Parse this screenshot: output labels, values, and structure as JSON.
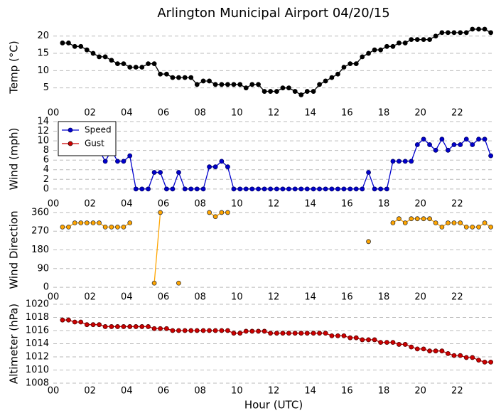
{
  "title": "Arlington Municipal Airport 04/20/15",
  "chart_data": [
    {
      "type": "line",
      "ylabel": "Temp (°C)",
      "ylim": [
        0,
        22
      ],
      "yticks": [
        5,
        10,
        15,
        20
      ],
      "xlim": [
        0,
        24
      ],
      "xticks": [
        {
          "value": 0,
          "label": "00"
        },
        {
          "value": 2,
          "label": "02"
        },
        {
          "value": 4,
          "label": "04"
        },
        {
          "value": 6,
          "label": "06"
        },
        {
          "value": 8,
          "label": "08"
        },
        {
          "value": 10,
          "label": "10"
        },
        {
          "value": 12,
          "label": "12"
        },
        {
          "value": 14,
          "label": "14"
        },
        {
          "value": 16,
          "label": "16"
        },
        {
          "value": 18,
          "label": "18"
        },
        {
          "value": 20,
          "label": "20"
        },
        {
          "value": 22,
          "label": "22"
        }
      ],
      "grid": true,
      "x": [
        0.5,
        0.83,
        1.17,
        1.5,
        1.83,
        2.17,
        2.5,
        2.83,
        3.17,
        3.5,
        3.83,
        4.17,
        4.5,
        4.83,
        5.17,
        5.5,
        5.83,
        6.17,
        6.5,
        6.83,
        7.17,
        7.5,
        7.83,
        8.17,
        8.5,
        8.83,
        9.17,
        9.5,
        9.83,
        10.17,
        10.5,
        10.83,
        11.17,
        11.5,
        11.83,
        12.17,
        12.5,
        12.83,
        13.17,
        13.5,
        13.83,
        14.17,
        14.5,
        14.83,
        15.17,
        15.5,
        15.83,
        16.17,
        16.5,
        16.83,
        17.17,
        17.5,
        17.83,
        18.17,
        18.5,
        18.83,
        19.17,
        19.5,
        19.83,
        20.17,
        20.5,
        20.83,
        21.17,
        21.5,
        21.83,
        22.17,
        22.5,
        22.83,
        23.17,
        23.5,
        23.83
      ],
      "series": [
        {
          "color": "#000000",
          "marker_edge": "#000000",
          "values": [
            18,
            18,
            17,
            17,
            16,
            15,
            14,
            14,
            13,
            12,
            12,
            11,
            11,
            11,
            12,
            12,
            9,
            9,
            8,
            8,
            8,
            8,
            6,
            7,
            7,
            6,
            6,
            6,
            6,
            6,
            5,
            6,
            6,
            4,
            4,
            4,
            5,
            5,
            4,
            3,
            4,
            4,
            6,
            7,
            8,
            9,
            11,
            12,
            12,
            14,
            15,
            16,
            16,
            17,
            17,
            18,
            18,
            19,
            19,
            19,
            19,
            20,
            21,
            21,
            21,
            21,
            21,
            22,
            22,
            22,
            21
          ]
        }
      ]
    },
    {
      "type": "line",
      "ylabel": "Wind (mph)",
      "ylim": [
        -1.5,
        14
      ],
      "yticks": [
        0,
        2,
        4,
        6,
        8,
        10,
        12,
        14
      ],
      "xlim": [
        0,
        24
      ],
      "xticks": [
        {
          "value": 0,
          "label": "00"
        },
        {
          "value": 2,
          "label": "02"
        },
        {
          "value": 4,
          "label": "04"
        },
        {
          "value": 6,
          "label": "06"
        },
        {
          "value": 8,
          "label": "08"
        },
        {
          "value": 10,
          "label": "10"
        },
        {
          "value": 12,
          "label": "12"
        },
        {
          "value": 14,
          "label": "14"
        },
        {
          "value": 16,
          "label": "16"
        },
        {
          "value": 18,
          "label": "18"
        },
        {
          "value": 20,
          "label": "20"
        },
        {
          "value": 22,
          "label": "22"
        }
      ],
      "grid": true,
      "legend": "upper left",
      "x": [
        0.5,
        0.83,
        1.17,
        1.5,
        1.83,
        2.17,
        2.5,
        2.83,
        3.17,
        3.5,
        3.83,
        4.17,
        4.5,
        4.83,
        5.17,
        5.5,
        5.83,
        6.17,
        6.5,
        6.83,
        7.17,
        7.5,
        7.83,
        8.17,
        8.5,
        8.83,
        9.17,
        9.5,
        9.83,
        10.17,
        10.5,
        10.83,
        11.17,
        11.5,
        11.83,
        12.17,
        12.5,
        12.83,
        13.17,
        13.5,
        13.83,
        14.17,
        14.5,
        14.83,
        15.17,
        15.5,
        15.83,
        16.17,
        16.5,
        16.83,
        17.17,
        17.5,
        17.83,
        18.17,
        18.5,
        18.83,
        19.17,
        19.5,
        19.83,
        20.17,
        20.5,
        20.83,
        21.17,
        21.5,
        21.83,
        22.17,
        22.5,
        22.83,
        23.17,
        23.5,
        23.83
      ],
      "series": [
        {
          "name": "Speed",
          "color": "#0000cc",
          "marker_edge": "#000066",
          "values": [
            8.05,
            8.05,
            8.05,
            8.05,
            8.05,
            8.05,
            8.05,
            5.75,
            8.05,
            5.75,
            5.75,
            6.9,
            0,
            0,
            0,
            3.45,
            3.45,
            0,
            0,
            3.45,
            0,
            0,
            0,
            0,
            4.6,
            4.6,
            5.75,
            4.6,
            0,
            0,
            0,
            0,
            0,
            0,
            0,
            0,
            0,
            0,
            0,
            0,
            0,
            0,
            0,
            0,
            0,
            0,
            0,
            0,
            0,
            0,
            3.45,
            0,
            0,
            0,
            5.75,
            5.75,
            5.75,
            5.75,
            9.2,
            10.35,
            9.2,
            8.05,
            10.35,
            8.05,
            9.2,
            9.2,
            10.35,
            9.2,
            10.35,
            10.35,
            6.9
          ]
        },
        {
          "name": "Gust",
          "color": "#cc0000",
          "marker_edge": "#330000",
          "values": [
            null,
            null,
            null,
            null,
            null,
            null,
            null,
            null,
            null,
            null,
            null,
            null,
            null,
            null,
            null,
            null,
            null,
            null,
            null,
            null,
            null,
            null,
            null,
            null,
            null,
            null,
            null,
            null,
            null,
            null,
            null,
            null,
            null,
            null,
            null,
            null,
            null,
            null,
            null,
            null,
            null,
            null,
            null,
            null,
            null,
            null,
            null,
            null,
            null,
            null,
            null,
            null,
            null,
            null,
            null,
            null,
            null,
            null,
            null,
            null,
            null,
            null,
            null,
            null,
            null,
            null,
            null,
            null,
            null,
            null,
            null
          ]
        }
      ]
    },
    {
      "type": "line",
      "ylabel": "Wind Direction",
      "ylim": [
        -10,
        370
      ],
      "yticks": [
        0,
        90,
        180,
        270,
        360
      ],
      "xlim": [
        0,
        24
      ],
      "xticks": [
        {
          "value": 0,
          "label": "00"
        },
        {
          "value": 2,
          "label": "02"
        },
        {
          "value": 4,
          "label": "04"
        },
        {
          "value": 6,
          "label": "06"
        },
        {
          "value": 8,
          "label": "08"
        },
        {
          "value": 10,
          "label": "10"
        },
        {
          "value": 12,
          "label": "12"
        },
        {
          "value": 14,
          "label": "14"
        },
        {
          "value": 16,
          "label": "16"
        },
        {
          "value": 18,
          "label": "18"
        },
        {
          "value": 20,
          "label": "20"
        },
        {
          "value": 22,
          "label": "22"
        }
      ],
      "grid": true,
      "x": [
        0.5,
        0.83,
        1.17,
        1.5,
        1.83,
        2.17,
        2.5,
        2.83,
        3.17,
        3.5,
        3.83,
        4.17,
        4.5,
        4.83,
        5.17,
        5.5,
        5.83,
        6.17,
        6.5,
        6.83,
        7.17,
        7.5,
        7.83,
        8.17,
        8.5,
        8.83,
        9.17,
        9.5,
        9.83,
        10.17,
        10.5,
        10.83,
        11.17,
        11.5,
        11.83,
        12.17,
        12.5,
        12.83,
        13.17,
        13.5,
        13.83,
        14.17,
        14.5,
        14.83,
        15.17,
        15.5,
        15.83,
        16.17,
        16.5,
        16.83,
        17.17,
        17.5,
        17.83,
        18.17,
        18.5,
        18.83,
        19.17,
        19.5,
        19.83,
        20.17,
        20.5,
        20.83,
        21.17,
        21.5,
        21.83,
        22.17,
        22.5,
        22.83,
        23.17,
        23.5,
        23.83
      ],
      "series": [
        {
          "color": "#ffa500",
          "marker_edge": "#333333",
          "values": [
            290,
            290,
            310,
            310,
            310,
            310,
            310,
            290,
            290,
            290,
            290,
            310,
            null,
            null,
            null,
            20,
            360,
            null,
            null,
            20,
            null,
            null,
            null,
            null,
            360,
            340,
            360,
            360,
            null,
            null,
            null,
            null,
            null,
            null,
            null,
            null,
            null,
            null,
            null,
            null,
            null,
            null,
            null,
            null,
            null,
            null,
            null,
            null,
            null,
            null,
            220,
            null,
            null,
            null,
            310,
            330,
            310,
            330,
            330,
            330,
            330,
            310,
            290,
            310,
            310,
            310,
            290,
            290,
            290,
            310,
            290
          ]
        }
      ]
    },
    {
      "type": "line",
      "ylabel": "Altimeter (hPa)",
      "xlabel": "Hour (UTC)",
      "ylim": [
        1008,
        1020
      ],
      "yticks": [
        1008,
        1010,
        1012,
        1014,
        1016,
        1018,
        1020
      ],
      "xlim": [
        0,
        24
      ],
      "xticks": [
        {
          "value": 0,
          "label": "00"
        },
        {
          "value": 2,
          "label": "02"
        },
        {
          "value": 4,
          "label": "04"
        },
        {
          "value": 6,
          "label": "06"
        },
        {
          "value": 8,
          "label": "08"
        },
        {
          "value": 10,
          "label": "10"
        },
        {
          "value": 12,
          "label": "12"
        },
        {
          "value": 14,
          "label": "14"
        },
        {
          "value": 16,
          "label": "16"
        },
        {
          "value": 18,
          "label": "18"
        },
        {
          "value": 20,
          "label": "20"
        },
        {
          "value": 22,
          "label": "22"
        }
      ],
      "grid": true,
      "x": [
        0.5,
        0.83,
        1.17,
        1.5,
        1.83,
        2.17,
        2.5,
        2.83,
        3.17,
        3.5,
        3.83,
        4.17,
        4.5,
        4.83,
        5.17,
        5.5,
        5.83,
        6.17,
        6.5,
        6.83,
        7.17,
        7.5,
        7.83,
        8.17,
        8.5,
        8.83,
        9.17,
        9.5,
        9.83,
        10.17,
        10.5,
        10.83,
        11.17,
        11.5,
        11.83,
        12.17,
        12.5,
        12.83,
        13.17,
        13.5,
        13.83,
        14.17,
        14.5,
        14.83,
        15.17,
        15.5,
        15.83,
        16.17,
        16.5,
        16.83,
        17.17,
        17.5,
        17.83,
        18.17,
        18.5,
        18.83,
        19.17,
        19.5,
        19.83,
        20.17,
        20.5,
        20.83,
        21.17,
        21.5,
        21.83,
        22.17,
        22.5,
        22.83,
        23.17,
        23.5,
        23.83
      ],
      "series": [
        {
          "color": "#cc0000",
          "marker_edge": "#550000",
          "values": [
            1017.6,
            1017.6,
            1017.3,
            1017.3,
            1016.9,
            1016.9,
            1016.9,
            1016.6,
            1016.6,
            1016.6,
            1016.6,
            1016.6,
            1016.6,
            1016.6,
            1016.6,
            1016.3,
            1016.3,
            1016.3,
            1016.0,
            1016.0,
            1016.0,
            1016.0,
            1016.0,
            1016.0,
            1016.0,
            1016.0,
            1016.0,
            1016.0,
            1015.6,
            1015.6,
            1015.9,
            1015.9,
            1015.9,
            1015.9,
            1015.6,
            1015.6,
            1015.6,
            1015.6,
            1015.6,
            1015.6,
            1015.6,
            1015.6,
            1015.6,
            1015.6,
            1015.2,
            1015.2,
            1015.2,
            1014.9,
            1014.9,
            1014.6,
            1014.6,
            1014.6,
            1014.2,
            1014.2,
            1014.2,
            1013.9,
            1013.9,
            1013.5,
            1013.2,
            1013.2,
            1012.9,
            1012.9,
            1012.9,
            1012.5,
            1012.2,
            1012.2,
            1011.9,
            1011.9,
            1011.5,
            1011.2,
            1011.2
          ]
        }
      ]
    }
  ]
}
